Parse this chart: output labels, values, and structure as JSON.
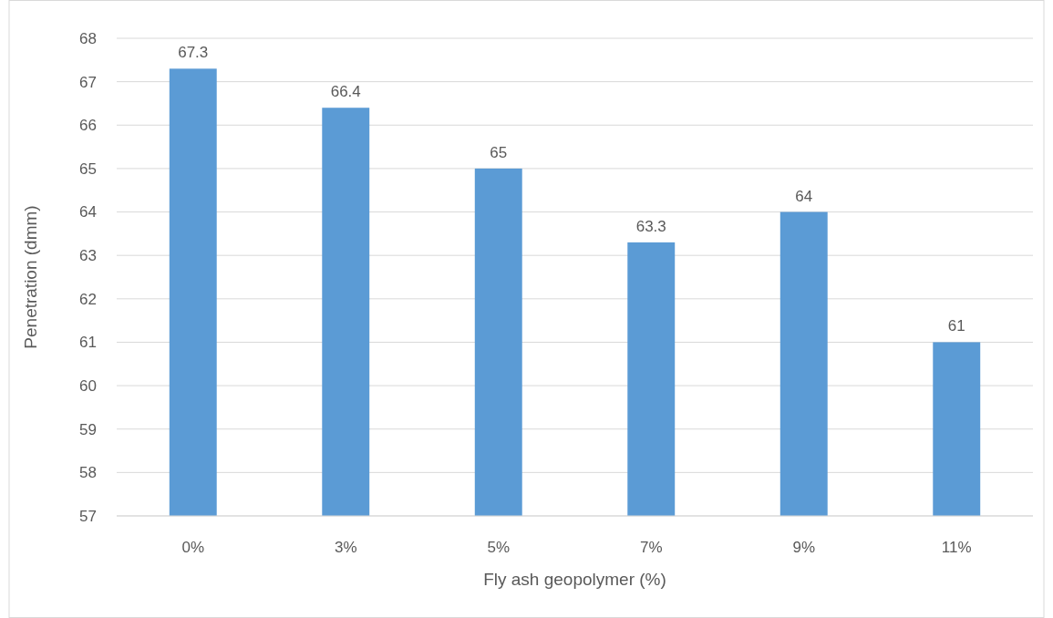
{
  "chart_data": {
    "type": "bar",
    "xlabel": "Fly ash geopolymer (%)",
    "ylabel": "Penetration (dmm)",
    "categories": [
      "0%",
      "3%",
      "5%",
      "7%",
      "9%",
      "11%"
    ],
    "values": [
      67.3,
      66.4,
      65,
      63.3,
      64,
      61
    ],
    "color": "#5b9bd5",
    "ylim": [
      57,
      68
    ],
    "yticks": [
      57,
      58,
      59,
      60,
      61,
      62,
      63,
      64,
      65,
      66,
      67,
      68
    ],
    "grid": "y",
    "data_labels": true
  }
}
